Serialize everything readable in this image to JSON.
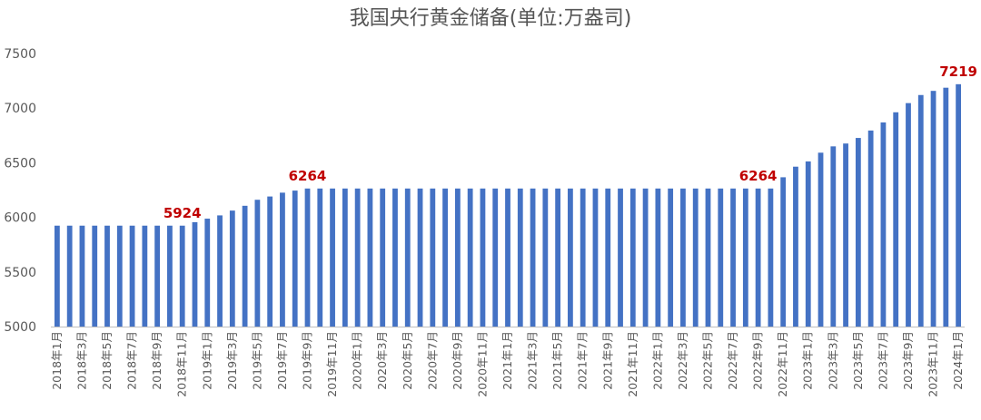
{
  "chart_data": {
    "type": "bar",
    "title": "我国央行黄金储备(单位:万盎司)",
    "ylim": [
      5000,
      7500
    ],
    "yticks": [
      5000,
      5500,
      6000,
      6500,
      7000,
      7500
    ],
    "grid": false,
    "bar_color": "#4472c4",
    "label_color": "#c00000",
    "categories": [
      "2018年1月",
      "2018年2月",
      "2018年3月",
      "2018年4月",
      "2018年5月",
      "2018年6月",
      "2018年7月",
      "2018年8月",
      "2018年9月",
      "2018年10月",
      "2018年11月",
      "2018年12月",
      "2019年1月",
      "2019年2月",
      "2019年3月",
      "2019年4月",
      "2019年5月",
      "2019年6月",
      "2019年7月",
      "2019年8月",
      "2019年9月",
      "2019年10月",
      "2019年11月",
      "2019年12月",
      "2020年1月",
      "2020年2月",
      "2020年3月",
      "2020年4月",
      "2020年5月",
      "2020年6月",
      "2020年7月",
      "2020年8月",
      "2020年9月",
      "2020年10月",
      "2020年11月",
      "2020年12月",
      "2021年1月",
      "2021年2月",
      "2021年3月",
      "2021年4月",
      "2021年5月",
      "2021年6月",
      "2021年7月",
      "2021年8月",
      "2021年9月",
      "2021年10月",
      "2021年11月",
      "2021年12月",
      "2022年1月",
      "2022年2月",
      "2022年3月",
      "2022年4月",
      "2022年5月",
      "2022年6月",
      "2022年7月",
      "2022年8月",
      "2022年9月",
      "2022年10月",
      "2022年11月",
      "2022年12月",
      "2023年1月",
      "2023年2月",
      "2023年3月",
      "2023年4月",
      "2023年5月",
      "2023年6月",
      "2023年7月",
      "2023年8月",
      "2023年9月",
      "2023年10月",
      "2023年11月",
      "2023年12月",
      "2024年1月"
    ],
    "shown_tick_labels": [
      "2018年1月",
      "2018年3月",
      "2018年5月",
      "2018年7月",
      "2018年9月",
      "2018年11月",
      "2019年1月",
      "2019年3月",
      "2019年5月",
      "2019年7月",
      "2019年9月",
      "2019年11月",
      "2020年1月",
      "2020年3月",
      "2020年5月",
      "2020年7月",
      "2020年9月",
      "2020年11月",
      "2021年1月",
      "2021年3月",
      "2021年5月",
      "2021年7月",
      "2021年9月",
      "2021年11月",
      "2022年1月",
      "2022年3月",
      "2022年5月",
      "2022年7月",
      "2022年9月",
      "2022年11月",
      "2023年1月",
      "2023年3月",
      "2023年5月",
      "2023年7月",
      "2023年9月",
      "2023年11月",
      "2024年1月"
    ],
    "values": [
      5924,
      5924,
      5924,
      5924,
      5924,
      5924,
      5924,
      5924,
      5924,
      5924,
      5924,
      5956,
      5988,
      6018,
      6062,
      6106,
      6161,
      6191,
      6226,
      6245,
      6264,
      6264,
      6264,
      6264,
      6264,
      6264,
      6264,
      6264,
      6264,
      6264,
      6264,
      6264,
      6264,
      6264,
      6264,
      6264,
      6264,
      6264,
      6264,
      6264,
      6264,
      6264,
      6264,
      6264,
      6264,
      6264,
      6264,
      6264,
      6264,
      6264,
      6264,
      6264,
      6264,
      6264,
      6264,
      6264,
      6264,
      6264,
      6367,
      6464,
      6512,
      6592,
      6650,
      6676,
      6727,
      6795,
      6869,
      6962,
      7046,
      7120,
      7158,
      7187,
      7219
    ],
    "data_labels": [
      {
        "index": 10,
        "text": "5924"
      },
      {
        "index": 20,
        "text": "6264"
      },
      {
        "index": 56,
        "text": "6264"
      },
      {
        "index": 72,
        "text": "7219"
      }
    ]
  }
}
